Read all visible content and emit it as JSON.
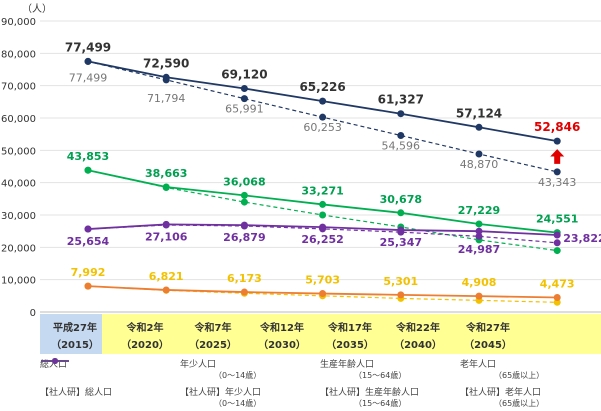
{
  "chart_data": {
    "type": "line",
    "unit_label": "（人）",
    "ylim": [
      0,
      90000
    ],
    "yticks": [
      "0",
      "10,000",
      "20,000",
      "30,000",
      "40,000",
      "50,000",
      "60,000",
      "70,000",
      "80,000",
      "90,000"
    ],
    "grid": true,
    "categories": [
      {
        "era": "平成27年",
        "year": "（2015）"
      },
      {
        "era": "令和2年",
        "year": "（2020）"
      },
      {
        "era": "令和7年",
        "year": "（2025）"
      },
      {
        "era": "令和12年",
        "year": "（2030）"
      },
      {
        "era": "令和17年",
        "year": "（2035）"
      },
      {
        "era": "令和22年",
        "year": "（2040）"
      },
      {
        "era": "令和27年",
        "year": "（2045）"
      }
    ],
    "series": [
      {
        "name": "総人口",
        "sub": "",
        "color": "#1f3864",
        "dash": false,
        "values": [
          77499,
          72590,
          69120,
          65226,
          61327,
          57124,
          52846
        ],
        "labels": [
          "77,499",
          "72,590",
          "69,120",
          "65,226",
          "61,327",
          "57,124",
          "52,846"
        ],
        "label_color": "#333333",
        "last_label_color": "#e00000"
      },
      {
        "name": "年少人口",
        "sub": "（0～14歳）",
        "color": "#ed7d31",
        "dash": false,
        "values": [
          7992,
          6821,
          6173,
          5703,
          5301,
          4908,
          4473
        ],
        "labels": [
          "7,992",
          "6,821",
          "6,173",
          "5,703",
          "5,301",
          "4,908",
          "4,473"
        ],
        "label_color": "#f2c200"
      },
      {
        "name": "生産年齢人口",
        "sub": "（15～64歳）",
        "color": "#00b050",
        "dash": false,
        "values": [
          43853,
          38663,
          36068,
          33271,
          30678,
          27229,
          24551
        ],
        "labels": [
          "43,853",
          "38,663",
          "36,068",
          "33,271",
          "30,678",
          "27,229",
          "24,551"
        ],
        "label_color": "#00a050"
      },
      {
        "name": "老年人口",
        "sub": "（65歳以上）",
        "color": "#7030a0",
        "dash": false,
        "values": [
          25654,
          27106,
          26879,
          26252,
          25347,
          24987,
          23822
        ],
        "labels": [
          "25,654",
          "27,106",
          "26,879",
          "26,252",
          "25,347",
          "24,987",
          "23,822"
        ],
        "label_color": "#7030a0"
      },
      {
        "name": "【社人研】総人口",
        "sub": "",
        "color": "#1f3864",
        "dash": true,
        "values": [
          77499,
          71794,
          65991,
          60253,
          54596,
          48870,
          43343
        ],
        "labels": [
          "77,499",
          "71,794",
          "65,991",
          "60,253",
          "54,596",
          "48,870",
          "43,343"
        ],
        "label_color": "#777777"
      },
      {
        "name": "【社人研】年少人口",
        "sub": "（0～14歳）",
        "color": "#f2c200",
        "dash": true,
        "values": [
          7992,
          6700,
          5800,
          5000,
          4200,
          3600,
          3000
        ]
      },
      {
        "name": "【社人研】生産年齢人口",
        "sub": "（15～64歳）",
        "color": "#00b050",
        "dash": true,
        "values": [
          43853,
          38500,
          34000,
          30000,
          26300,
          22300,
          19000
        ]
      },
      {
        "name": "【社人研】老年人口",
        "sub": "（65歳以上）",
        "color": "#7030a0",
        "dash": true,
        "values": [
          25654,
          26900,
          26600,
          25700,
          24700,
          23400,
          21400
        ]
      }
    ],
    "annotation": {
      "type": "up-arrow",
      "color": "#e00000",
      "category": "（2045）"
    },
    "legend_placement": "bottom"
  }
}
